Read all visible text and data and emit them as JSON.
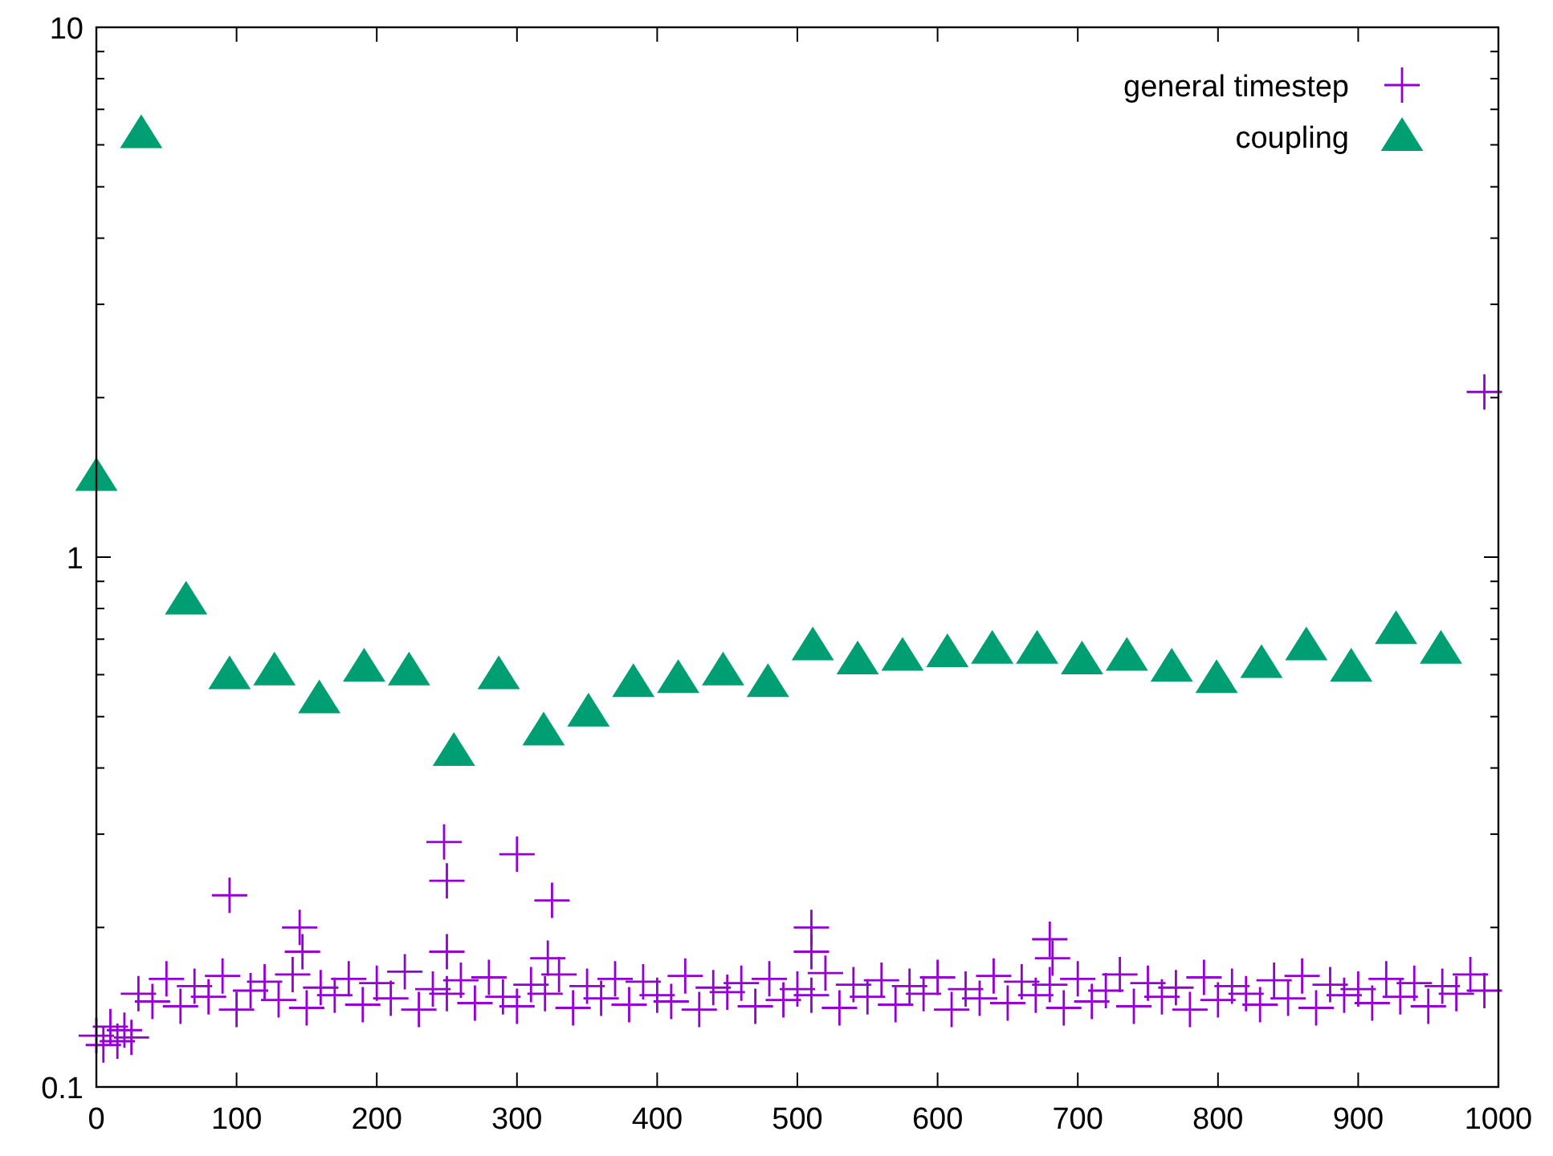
{
  "chart_data": {
    "type": "scatter",
    "log": "y",
    "legend": "top right",
    "grid": false,
    "xlim": [
      0,
      1000
    ],
    "xticks": [
      0,
      100,
      200,
      300,
      400,
      500,
      600,
      700,
      800,
      900,
      1000
    ],
    "ylim": [
      0.1,
      10
    ],
    "yticks": [
      {
        "value": 0.1,
        "label": "0.1"
      },
      {
        "value": 0.2,
        "label": null
      },
      {
        "value": 0.3,
        "label": null
      },
      {
        "value": 0.4,
        "label": null
      },
      {
        "value": 0.5,
        "label": null
      },
      {
        "value": 0.6,
        "label": null
      },
      {
        "value": 0.7,
        "label": null
      },
      {
        "value": 0.8,
        "label": null
      },
      {
        "value": 0.9,
        "label": null
      },
      {
        "value": 1,
        "label": "1"
      },
      {
        "value": 2,
        "label": null
      },
      {
        "value": 3,
        "label": null
      },
      {
        "value": 4,
        "label": null
      },
      {
        "value": 5,
        "label": null
      },
      {
        "value": 6,
        "label": null
      },
      {
        "value": 7,
        "label": null
      },
      {
        "value": 8,
        "label": null
      },
      {
        "value": 9,
        "label": null
      },
      {
        "value": 10,
        "label": "10"
      }
    ],
    "series": [
      {
        "name": "general timestep",
        "color": "#9400d3",
        "marker": "cross",
        "x": [
          0,
          5,
          10,
          15,
          20,
          25,
          30,
          40,
          50,
          60,
          70,
          80,
          90,
          100,
          110,
          120,
          130,
          140,
          150,
          160,
          170,
          180,
          190,
          200,
          210,
          220,
          230,
          240,
          250,
          260,
          270,
          280,
          290,
          300,
          310,
          320,
          330,
          340,
          350,
          360,
          370,
          380,
          390,
          400,
          410,
          420,
          430,
          440,
          450,
          460,
          470,
          480,
          490,
          500,
          510,
          520,
          530,
          540,
          550,
          560,
          570,
          580,
          590,
          600,
          610,
          620,
          630,
          640,
          650,
          660,
          670,
          680,
          690,
          700,
          710,
          720,
          730,
          740,
          750,
          760,
          770,
          780,
          790,
          800,
          810,
          820,
          830,
          840,
          850,
          860,
          870,
          880,
          890,
          900,
          910,
          920,
          930,
          940,
          950,
          960,
          970,
          980,
          990,
          95,
          145,
          147,
          248,
          250,
          250,
          300,
          325,
          322,
          510,
          510,
          680,
          682,
          990
        ],
        "values": [
          0.125,
          0.12,
          0.13,
          0.122,
          0.128,
          0.124,
          0.15,
          0.145,
          0.16,
          0.142,
          0.155,
          0.148,
          0.162,
          0.14,
          0.152,
          0.158,
          0.146,
          0.163,
          0.141,
          0.154,
          0.149,
          0.16,
          0.143,
          0.157,
          0.147,
          0.165,
          0.14,
          0.153,
          0.15,
          0.159,
          0.144,
          0.161,
          0.148,
          0.142,
          0.156,
          0.15,
          0.163,
          0.141,
          0.155,
          0.147,
          0.16,
          0.143,
          0.158,
          0.149,
          0.145,
          0.162,
          0.14,
          0.154,
          0.151,
          0.157,
          0.142,
          0.16,
          0.146,
          0.153,
          0.149,
          0.164,
          0.141,
          0.156,
          0.148,
          0.159,
          0.143,
          0.155,
          0.15,
          0.161,
          0.14,
          0.153,
          0.147,
          0.162,
          0.144,
          0.158,
          0.149,
          0.156,
          0.141,
          0.16,
          0.145,
          0.152,
          0.163,
          0.142,
          0.157,
          0.148,
          0.154,
          0.14,
          0.161,
          0.146,
          0.155,
          0.15,
          0.143,
          0.159,
          0.147,
          0.162,
          0.141,
          0.156,
          0.149,
          0.153,
          0.144,
          0.16,
          0.148,
          0.157,
          0.142,
          0.155,
          0.15,
          0.163,
          0.152,
          0.23,
          0.2,
          0.18,
          0.29,
          0.245,
          0.18,
          0.275,
          0.225,
          0.175,
          0.2,
          0.18,
          0.19,
          0.175,
          2.05
        ]
      },
      {
        "name": "coupling",
        "color": "#009e73",
        "marker": "triangle",
        "x": [
          0,
          32,
          64,
          95,
          127,
          159,
          191,
          223,
          255,
          287,
          319,
          351,
          383,
          415,
          447,
          479,
          511,
          543,
          575,
          607,
          639,
          671,
          703,
          735,
          767,
          799,
          831,
          863,
          895,
          927,
          959
        ],
        "values": [
          1.42,
          6.3,
          0.83,
          0.6,
          0.61,
          0.54,
          0.62,
          0.61,
          0.43,
          0.6,
          0.47,
          0.51,
          0.58,
          0.59,
          0.61,
          0.58,
          0.68,
          0.64,
          0.65,
          0.66,
          0.67,
          0.67,
          0.64,
          0.65,
          0.62,
          0.59,
          0.63,
          0.68,
          0.62,
          0.73,
          0.67
        ]
      }
    ]
  }
}
